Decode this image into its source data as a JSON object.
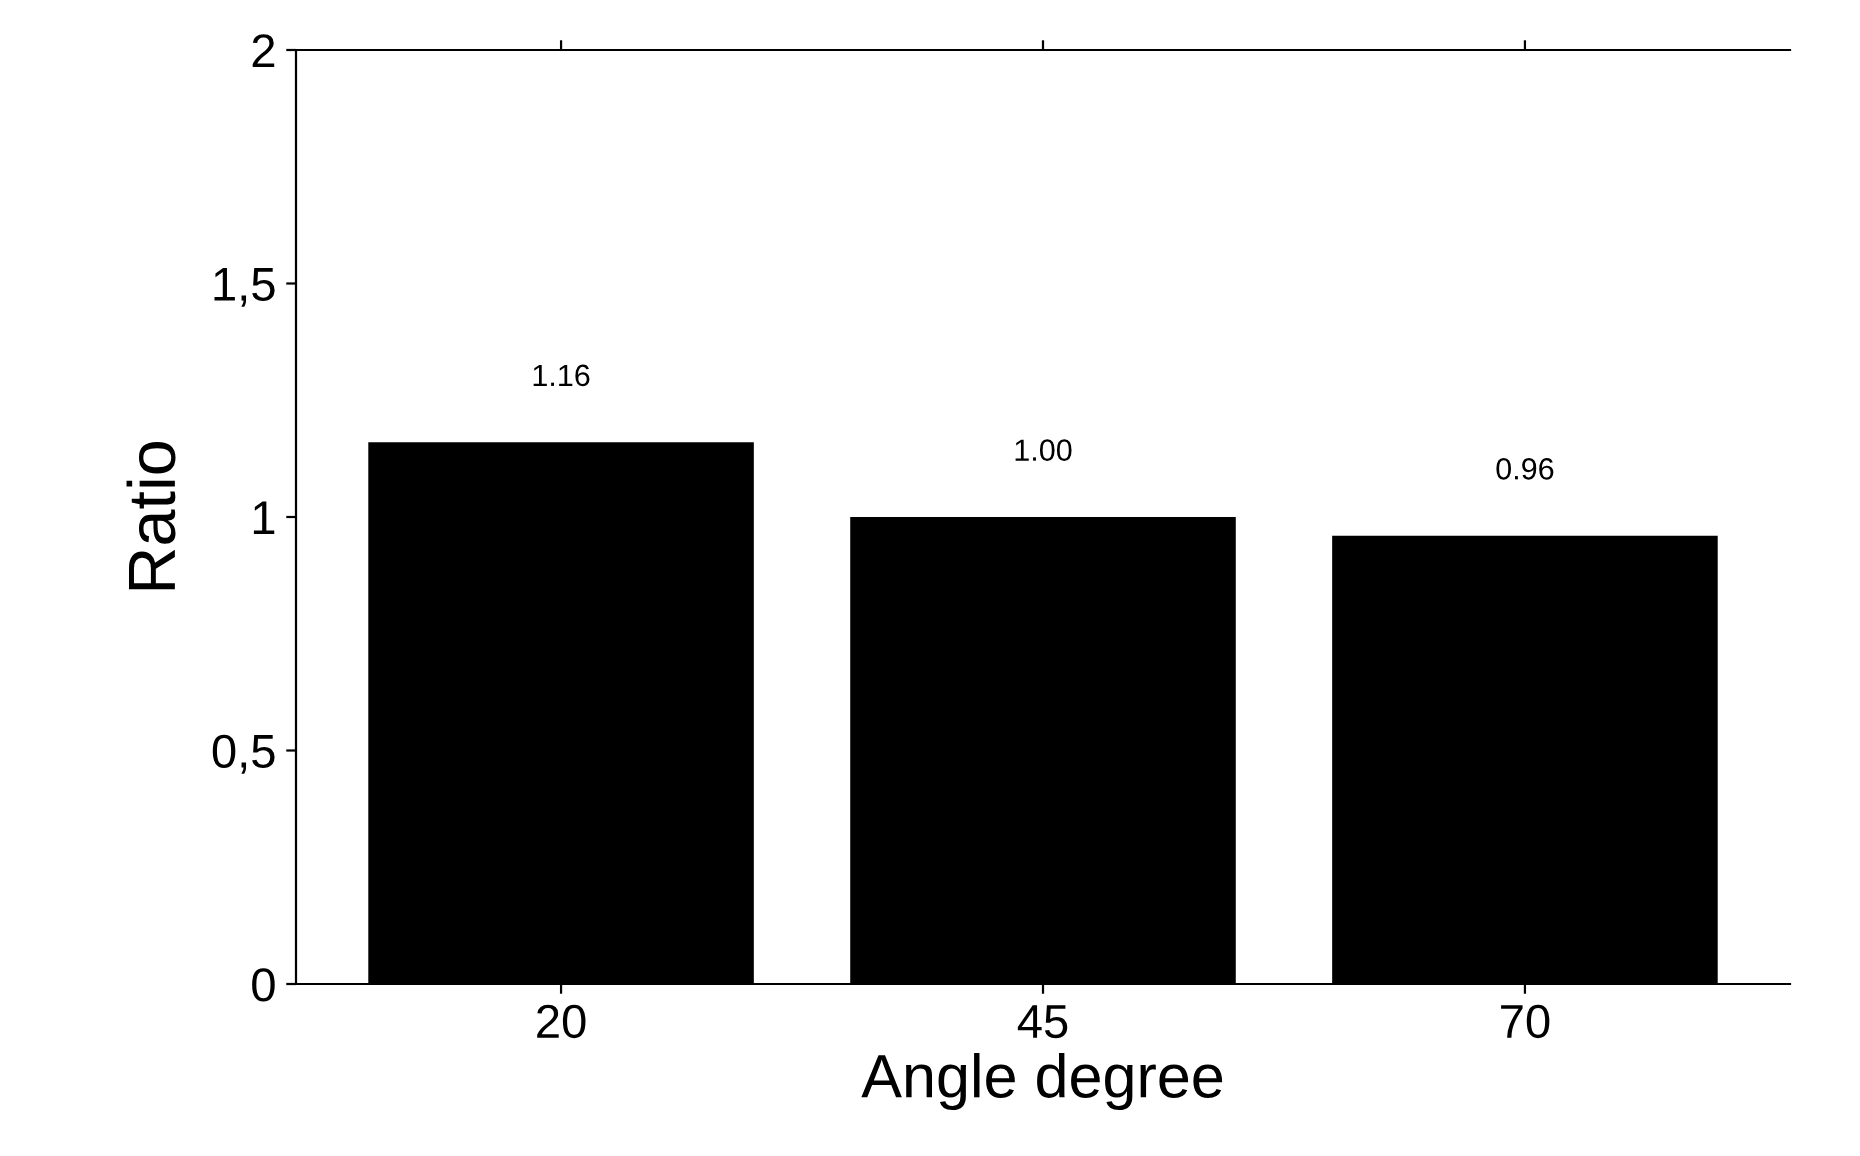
{
  "chart_data": {
    "type": "bar",
    "xlabel": "Angle degree",
    "ylabel": "Ratio",
    "categories": [
      "20",
      "45",
      "70"
    ],
    "series": [
      {
        "color": "#000000",
        "values": [
          1.16,
          1.0,
          0.96
        ]
      }
    ],
    "value_labels": [
      "1.16",
      "1.00",
      "0.96"
    ],
    "ylim": [
      0,
      2
    ],
    "yticks": [
      0,
      {
        "value": 0.5,
        "label": "0,5"
      },
      1,
      {
        "value": 1.5,
        "label": "1,5"
      },
      2
    ],
    "grid": false
  }
}
